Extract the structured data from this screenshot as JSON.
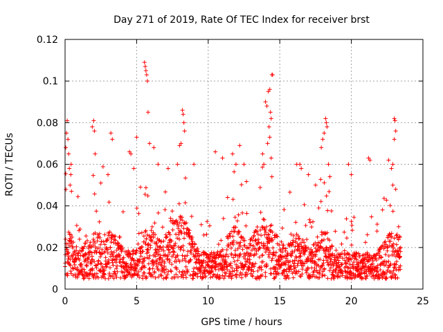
{
  "chart_data": {
    "type": "scatter",
    "title": "Day 271 of 2019, Rate Of TEC Index for receiver brst",
    "xlabel": "GPS time / hours",
    "ylabel": "ROTI / TECUs",
    "xlim": [
      0,
      25
    ],
    "ylim": [
      0,
      0.12
    ],
    "xticks": [
      0,
      5,
      10,
      15,
      20,
      25
    ],
    "xtick_labels": [
      "0",
      "5",
      "10",
      "15",
      "20",
      "25"
    ],
    "yticks": [
      0,
      0.02,
      0.04,
      0.06,
      0.08,
      0.1,
      0.12
    ],
    "ytick_labels": [
      "0",
      "0.02",
      "0.04",
      "0.06",
      "0.08",
      "0.1",
      "0.12"
    ],
    "grid": true,
    "marker": "+",
    "color": "#ff0000",
    "data_gap_hours": [
      19.4,
      19.5
    ],
    "series": [
      {
        "name": "ROTI",
        "points": [
          [
            0.05,
            0.068
          ],
          [
            0.1,
            0.075
          ],
          [
            0.15,
            0.081
          ],
          [
            0.2,
            0.072
          ],
          [
            0.25,
            0.065
          ],
          [
            0.3,
            0.058
          ],
          [
            0.35,
            0.05
          ],
          [
            0.4,
            0.055
          ],
          [
            0.45,
            0.047
          ],
          [
            1.9,
            0.078
          ],
          [
            2.0,
            0.081
          ],
          [
            2.05,
            0.076
          ],
          [
            2.1,
            0.065
          ],
          [
            2.5,
            0.051
          ],
          [
            3.0,
            0.055
          ],
          [
            3.2,
            0.075
          ],
          [
            3.3,
            0.072
          ],
          [
            4.5,
            0.066
          ],
          [
            4.6,
            0.065
          ],
          [
            4.8,
            0.058
          ],
          [
            5.0,
            0.073
          ],
          [
            5.55,
            0.109
          ],
          [
            5.6,
            0.107
          ],
          [
            5.65,
            0.105
          ],
          [
            5.7,
            0.103
          ],
          [
            5.75,
            0.1
          ],
          [
            5.8,
            0.085
          ],
          [
            5.9,
            0.07
          ],
          [
            6.2,
            0.068
          ],
          [
            6.5,
            0.06
          ],
          [
            7.2,
            0.058
          ],
          [
            8.2,
            0.086
          ],
          [
            8.25,
            0.084
          ],
          [
            8.3,
            0.08
          ],
          [
            8.35,
            0.076
          ],
          [
            8.1,
            0.07
          ],
          [
            8.0,
            0.069
          ],
          [
            9.0,
            0.06
          ],
          [
            10.5,
            0.066
          ],
          [
            11.0,
            0.063
          ],
          [
            11.7,
            0.065
          ],
          [
            12.2,
            0.069
          ],
          [
            12.5,
            0.06
          ],
          [
            14.0,
            0.09
          ],
          [
            14.1,
            0.088
          ],
          [
            14.2,
            0.095
          ],
          [
            14.3,
            0.096
          ],
          [
            14.35,
            0.085
          ],
          [
            14.4,
            0.082
          ],
          [
            14.45,
            0.103
          ],
          [
            14.5,
            0.103
          ],
          [
            14.25,
            0.078
          ],
          [
            14.3,
            0.073
          ],
          [
            14.15,
            0.07
          ],
          [
            14.4,
            0.063
          ],
          [
            13.8,
            0.065
          ],
          [
            16.4,
            0.06
          ],
          [
            16.5,
            0.058
          ],
          [
            17.0,
            0.055
          ],
          [
            17.5,
            0.05
          ],
          [
            18.2,
            0.082
          ],
          [
            18.25,
            0.08
          ],
          [
            18.3,
            0.078
          ],
          [
            18.1,
            0.075
          ],
          [
            17.9,
            0.068
          ],
          [
            18.0,
            0.072
          ],
          [
            18.4,
            0.06
          ],
          [
            18.5,
            0.054
          ],
          [
            19.8,
            0.06
          ],
          [
            20.0,
            0.055
          ],
          [
            21.2,
            0.063
          ],
          [
            21.3,
            0.062
          ],
          [
            22.6,
            0.062
          ],
          [
            22.8,
            0.058
          ],
          [
            23.0,
            0.082
          ],
          [
            23.05,
            0.081
          ],
          [
            23.1,
            0.076
          ],
          [
            23.0,
            0.072
          ],
          [
            22.9,
            0.05
          ],
          [
            23.1,
            0.048
          ],
          [
            23.3,
            0.03
          ],
          [
            23.4,
            0.025
          ]
        ]
      }
    ]
  }
}
